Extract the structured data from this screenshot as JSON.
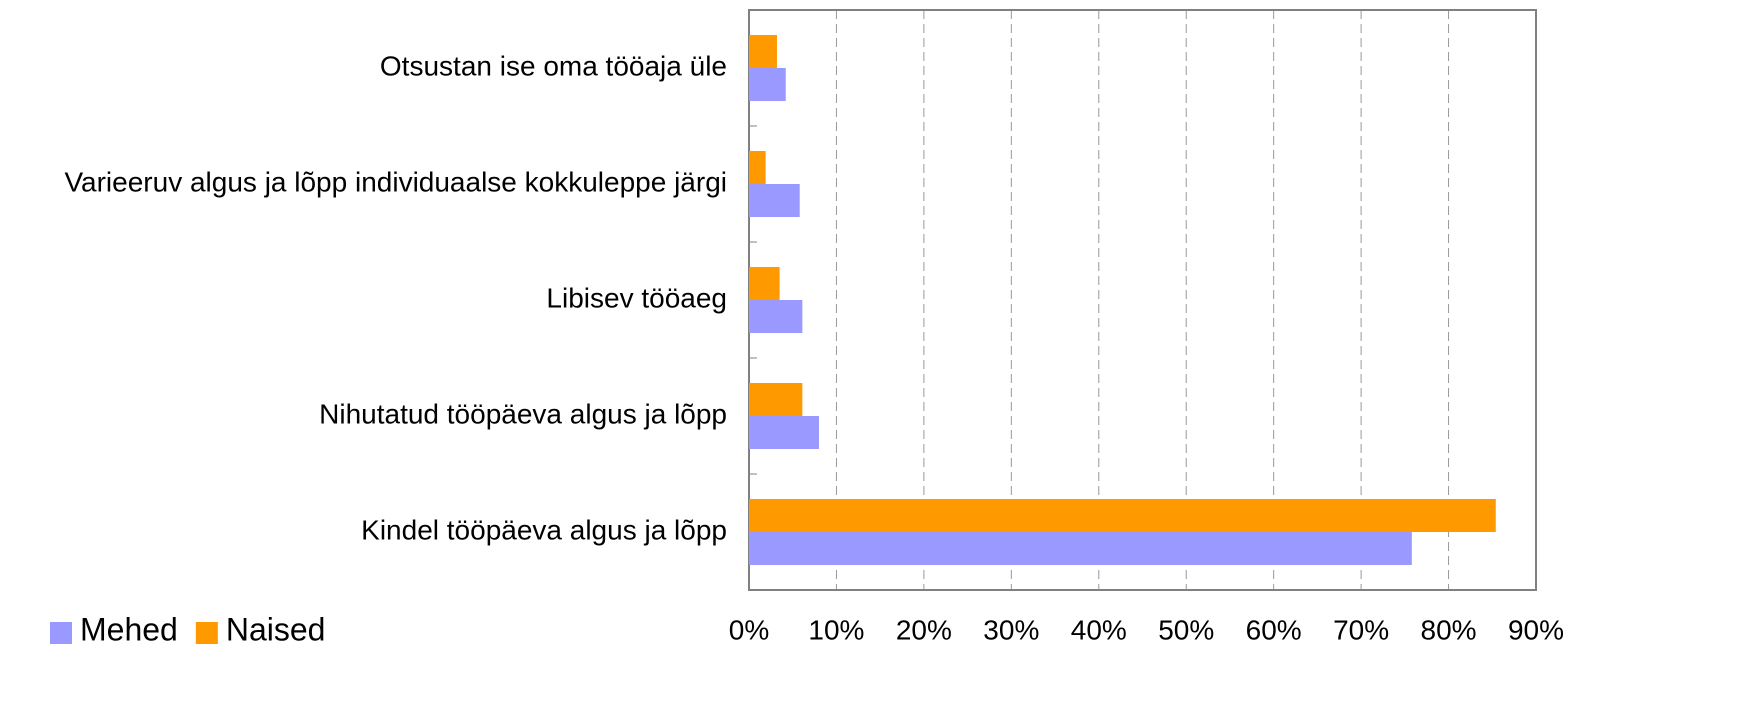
{
  "chart_data": {
    "type": "bar",
    "orientation": "horizontal",
    "categories": [
      "Otsustan ise oma tööaja üle",
      "Varieeruv algus ja lõpp individuaalse kokkuleppe järgi",
      "Libisev tööaeg",
      "Nihutatud tööpäeva algus ja lõpp",
      "Kindel tööpäeva algus ja lõpp"
    ],
    "series": [
      {
        "name": "Mehed",
        "color": "#9999ff",
        "values": [
          4.2,
          5.8,
          6.1,
          8.0,
          75.8
        ]
      },
      {
        "name": "Naised",
        "color": "#ff9900",
        "values": [
          3.2,
          1.9,
          3.5,
          6.1,
          85.4
        ]
      }
    ],
    "xlim": [
      0,
      90
    ],
    "xticks": [
      {
        "value": 0,
        "label": "0%"
      },
      {
        "value": 10,
        "label": "10%"
      },
      {
        "value": 20,
        "label": "20%"
      },
      {
        "value": 30,
        "label": "30%"
      },
      {
        "value": 40,
        "label": "40%"
      },
      {
        "value": 50,
        "label": "50%"
      },
      {
        "value": 60,
        "label": "60%"
      },
      {
        "value": 70,
        "label": "70%"
      },
      {
        "value": 80,
        "label": "80%"
      },
      {
        "value": 90,
        "label": "90%"
      }
    ],
    "grid": true,
    "legend": "bottom-left"
  }
}
